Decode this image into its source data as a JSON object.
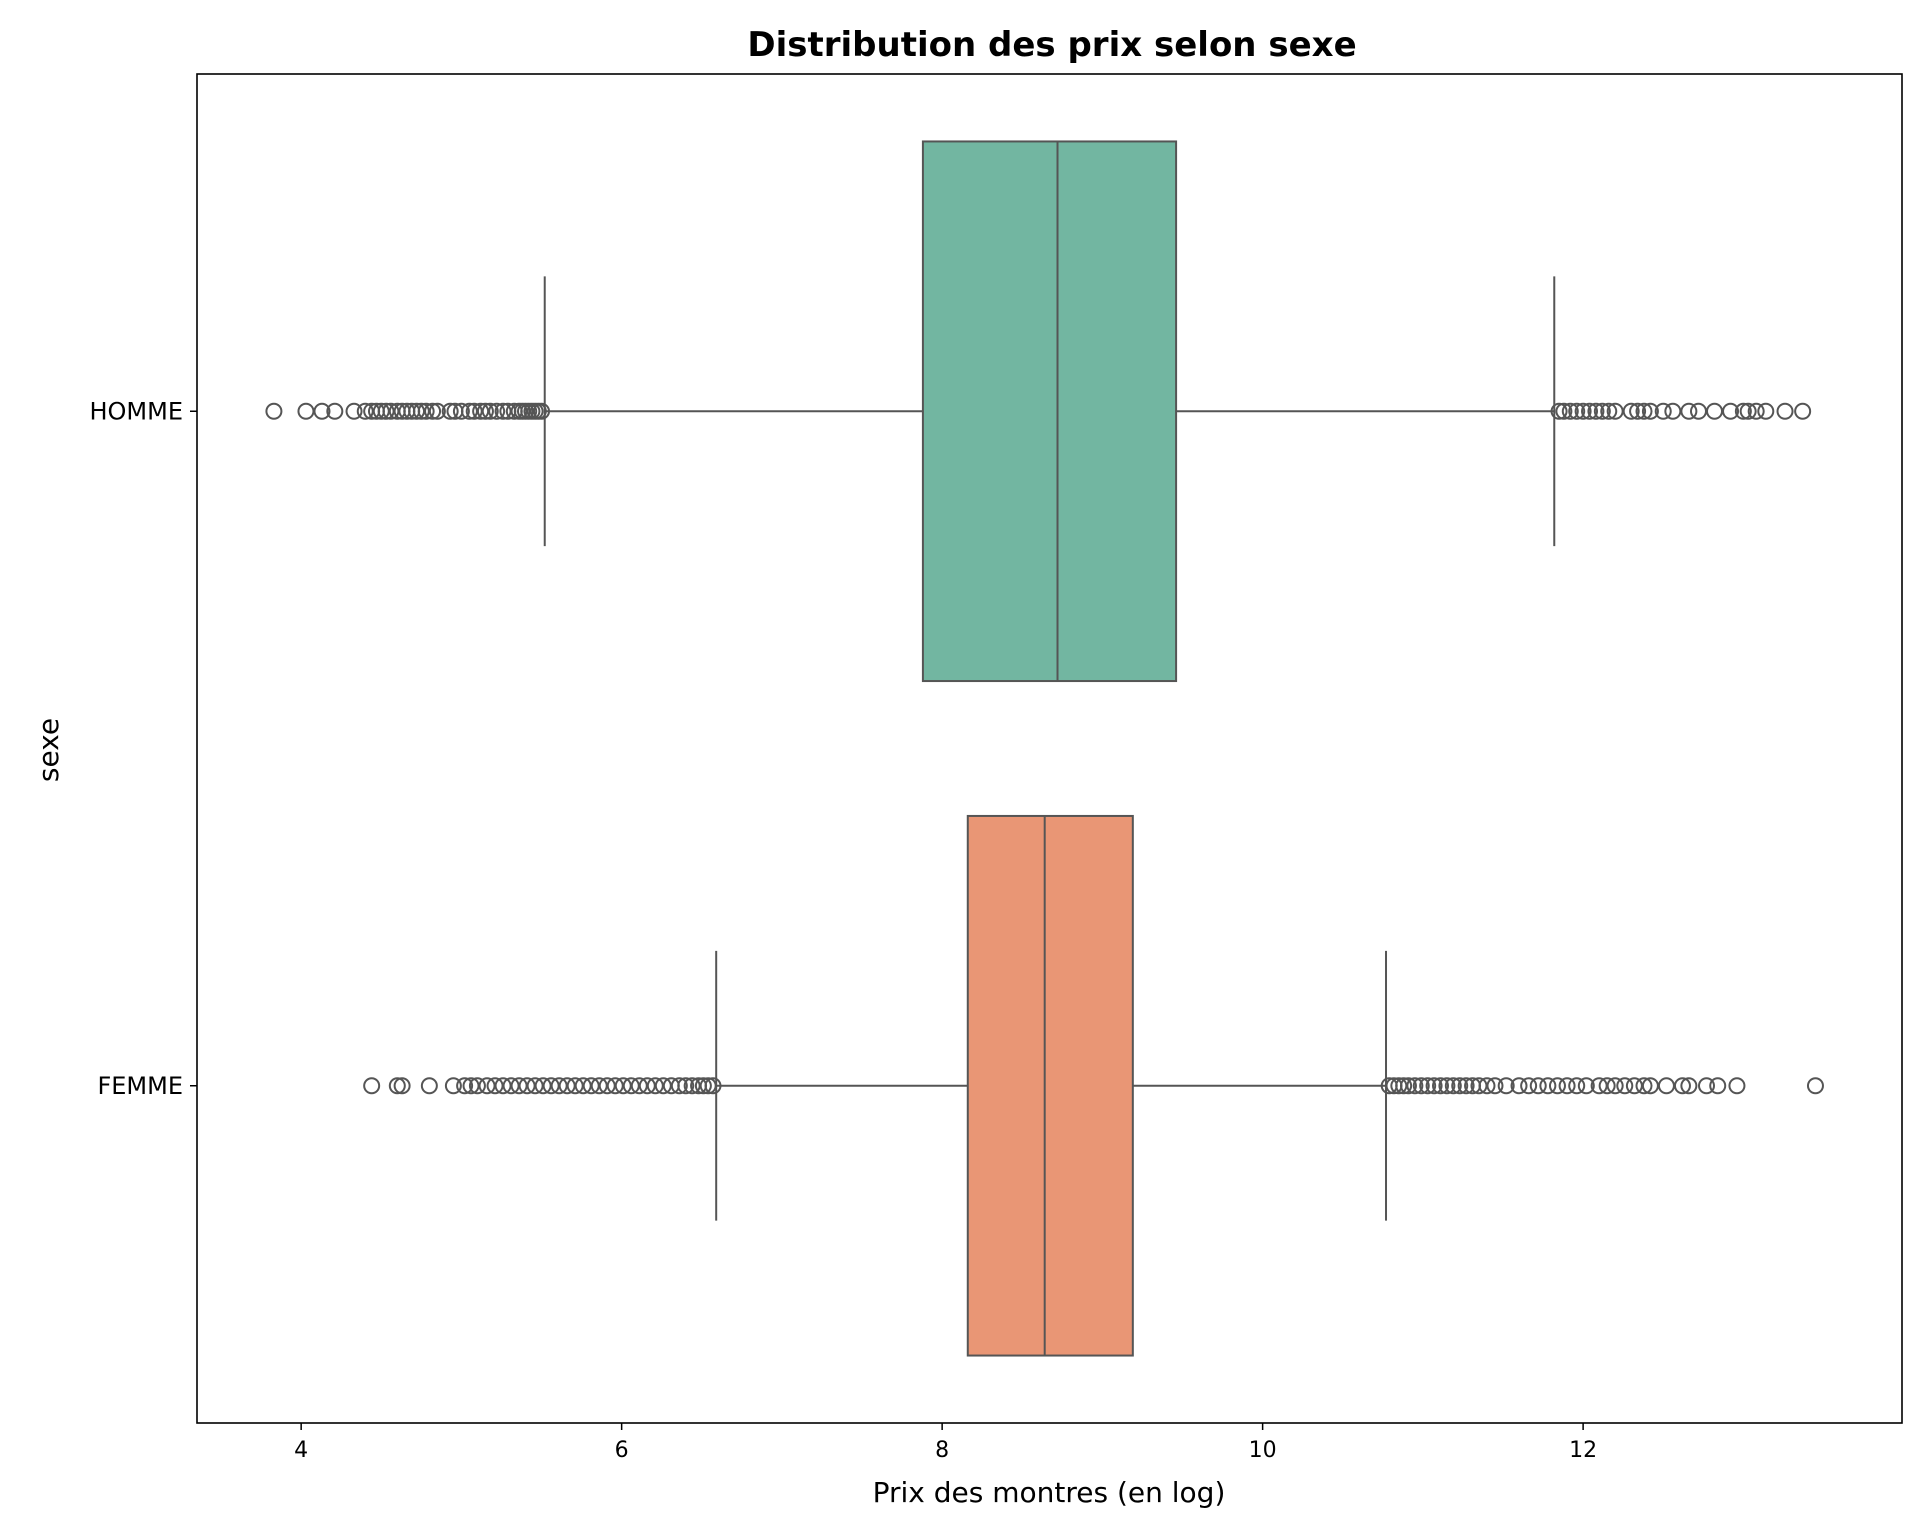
{
  "chart_data": {
    "type": "boxplot",
    "orientation": "horizontal",
    "title": "Distribution des prix selon sexe",
    "xlabel": "Prix des montres (en log)",
    "ylabel": "sexe",
    "xlim": [
      3.35,
      13.99
    ],
    "xticks": [
      4,
      6,
      8,
      10,
      12
    ],
    "grid": false,
    "legend": "none",
    "series": [
      {
        "name": "HOMME",
        "color": "#72b6a1",
        "whisker_low": 5.52,
        "q1": 7.88,
        "median": 8.72,
        "q3": 9.46,
        "whisker_high": 11.82,
        "outliers": [
          3.83,
          4.03,
          4.13,
          4.21,
          4.33,
          4.4,
          4.44,
          4.47,
          4.5,
          4.53,
          4.56,
          4.6,
          4.63,
          4.66,
          4.69,
          4.72,
          4.75,
          4.78,
          4.82,
          4.85,
          4.93,
          4.96,
          5.0,
          5.05,
          5.08,
          5.12,
          5.15,
          5.18,
          5.22,
          5.26,
          5.29,
          5.33,
          5.36,
          5.38,
          5.4,
          5.42,
          5.44,
          5.46,
          5.48,
          5.5,
          11.85,
          11.88,
          11.92,
          11.96,
          12.0,
          12.04,
          12.08,
          12.12,
          12.16,
          12.2,
          12.3,
          12.34,
          12.38,
          12.42,
          12.5,
          12.56,
          12.66,
          12.72,
          12.82,
          12.92,
          13.0,
          13.03,
          13.08,
          13.14,
          13.26,
          13.37
        ]
      },
      {
        "name": "FEMME",
        "color": "#e99675",
        "whisker_low": 6.59,
        "q1": 8.16,
        "median": 8.64,
        "q3": 9.19,
        "whisker_high": 10.77,
        "outliers": [
          4.44,
          4.6,
          4.63,
          4.8,
          4.95,
          5.02,
          5.06,
          5.1,
          5.16,
          5.21,
          5.26,
          5.31,
          5.36,
          5.41,
          5.46,
          5.51,
          5.56,
          5.61,
          5.66,
          5.71,
          5.76,
          5.81,
          5.86,
          5.91,
          5.96,
          6.01,
          6.06,
          6.11,
          6.16,
          6.21,
          6.26,
          6.31,
          6.36,
          6.4,
          6.44,
          6.48,
          6.51,
          6.54,
          6.57,
          10.79,
          10.82,
          10.85,
          10.88,
          10.91,
          10.95,
          10.99,
          11.03,
          11.07,
          11.11,
          11.15,
          11.19,
          11.23,
          11.27,
          11.31,
          11.35,
          11.4,
          11.45,
          11.52,
          11.6,
          11.66,
          11.72,
          11.78,
          11.84,
          11.9,
          11.96,
          12.02,
          12.1,
          12.15,
          12.2,
          12.26,
          12.32,
          12.38,
          12.42,
          12.52,
          12.62,
          12.66,
          12.77,
          12.84,
          12.96,
          13.45
        ]
      }
    ]
  }
}
